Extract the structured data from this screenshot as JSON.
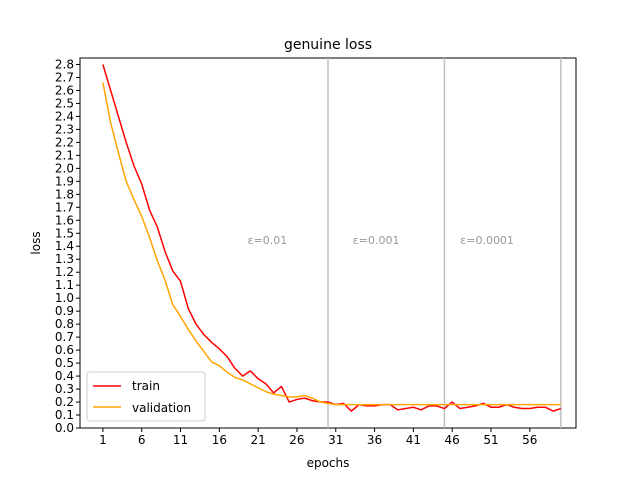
{
  "chart_data": {
    "type": "line",
    "title": "genuine loss",
    "xlabel": "epochs",
    "ylabel": "loss",
    "xlim": [
      -1.95,
      61.95
    ],
    "ylim": [
      0.0,
      2.85
    ],
    "xticks": [
      1,
      6,
      11,
      16,
      21,
      26,
      31,
      36,
      41,
      46,
      51,
      56
    ],
    "yticks": [
      0.0,
      0.1,
      0.2,
      0.3,
      0.4,
      0.5,
      0.6,
      0.7,
      0.8,
      0.9,
      1.0,
      1.1,
      1.2,
      1.3,
      1.4,
      1.5,
      1.6,
      1.7,
      1.8,
      1.9,
      2.0,
      2.1,
      2.2,
      2.3,
      2.4,
      2.5,
      2.6,
      2.7,
      2.8
    ],
    "legend": "lower-left",
    "grid": false,
    "colors": {
      "train": "#ff0000",
      "validation": "#ffa500",
      "vline": "#c0c0c0",
      "annotation": "#999999"
    },
    "vlines": [
      30,
      45,
      60
    ],
    "annotations": [
      {
        "text": "ε=0.01",
        "x": 22.2,
        "y": 1.45
      },
      {
        "text": "ε=0.001",
        "x": 36.2,
        "y": 1.45
      },
      {
        "text": "ε=0.0001",
        "x": 50.5,
        "y": 1.45
      }
    ],
    "x": [
      1,
      2,
      3,
      4,
      5,
      6,
      7,
      8,
      9,
      10,
      11,
      12,
      13,
      14,
      15,
      16,
      17,
      18,
      19,
      20,
      21,
      22,
      23,
      24,
      25,
      26,
      27,
      28,
      29,
      30,
      31,
      32,
      33,
      34,
      35,
      36,
      37,
      38,
      39,
      40,
      41,
      42,
      43,
      44,
      45,
      46,
      47,
      48,
      49,
      50,
      51,
      52,
      53,
      54,
      55,
      56,
      57,
      58,
      59,
      60
    ],
    "series": [
      {
        "name": "train",
        "values": [
          2.8,
          2.6,
          2.4,
          2.2,
          2.02,
          1.88,
          1.68,
          1.55,
          1.36,
          1.21,
          1.13,
          0.92,
          0.8,
          0.72,
          0.66,
          0.61,
          0.55,
          0.46,
          0.4,
          0.44,
          0.38,
          0.34,
          0.27,
          0.32,
          0.2,
          0.22,
          0.23,
          0.21,
          0.2,
          0.2,
          0.18,
          0.19,
          0.13,
          0.18,
          0.17,
          0.17,
          0.18,
          0.18,
          0.14,
          0.15,
          0.16,
          0.14,
          0.17,
          0.17,
          0.15,
          0.2,
          0.15,
          0.16,
          0.17,
          0.19,
          0.16,
          0.16,
          0.18,
          0.16,
          0.15,
          0.15,
          0.16,
          0.16,
          0.13,
          0.15
        ]
      },
      {
        "name": "validation",
        "values": [
          2.66,
          2.35,
          2.12,
          1.9,
          1.76,
          1.63,
          1.47,
          1.29,
          1.14,
          0.95,
          0.86,
          0.76,
          0.67,
          0.59,
          0.51,
          0.48,
          0.43,
          0.39,
          0.37,
          0.34,
          0.31,
          0.28,
          0.26,
          0.25,
          0.24,
          0.24,
          0.25,
          0.23,
          0.2,
          0.19,
          0.18,
          0.18,
          0.18,
          0.18,
          0.18,
          0.18,
          0.18,
          0.18,
          0.18,
          0.18,
          0.18,
          0.18,
          0.18,
          0.18,
          0.18,
          0.18,
          0.18,
          0.18,
          0.18,
          0.18,
          0.18,
          0.18,
          0.18,
          0.18,
          0.18,
          0.18,
          0.18,
          0.18,
          0.18,
          0.18
        ]
      }
    ]
  }
}
